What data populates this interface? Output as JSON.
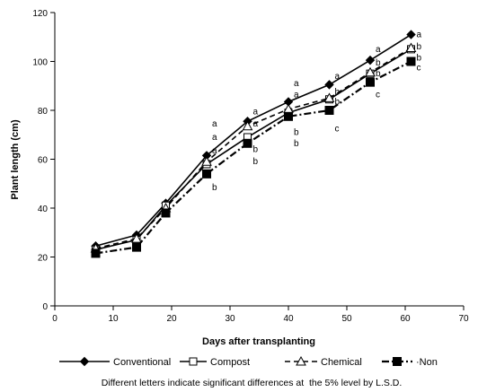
{
  "chart_data": {
    "type": "line",
    "title": "",
    "xlabel": "Days after transplanting",
    "ylabel": "Plant length (cm)",
    "xlim": [
      0,
      70
    ],
    "ylim": [
      0,
      120
    ],
    "xticks": [
      0,
      10,
      20,
      30,
      40,
      50,
      60,
      70
    ],
    "yticks": [
      0,
      20,
      40,
      60,
      80,
      100,
      120
    ],
    "grid": false,
    "legend_position": "bottom",
    "x": [
      7,
      14,
      19,
      26,
      33,
      40,
      47,
      54,
      61
    ],
    "series": [
      {
        "name": "Conventional",
        "marker": "filled-diamond",
        "line": "solid",
        "values": [
          24.5,
          29,
          42,
          61.5,
          75.5,
          83.5,
          90.5,
          100.5,
          111
        ]
      },
      {
        "name": "Compost",
        "marker": "open-square",
        "line": "solid",
        "values": [
          23,
          27,
          41,
          58,
          69,
          79,
          84.5,
          95,
          105
        ]
      },
      {
        "name": "Chemical",
        "marker": "open-triangle",
        "line": "dashed",
        "values": [
          23.5,
          27.5,
          40,
          59,
          73.5,
          80.5,
          85,
          95.5,
          105.5
        ]
      },
      {
        "name": "Non",
        "marker": "filled-square",
        "line": "dash-dot",
        "values": [
          21.5,
          24,
          38,
          54,
          66.5,
          77.5,
          80,
          91.5,
          100
        ]
      }
    ],
    "significance_letters": [
      {
        "x": 26,
        "y": 74.5,
        "text": "a"
      },
      {
        "x": 26,
        "y": 69,
        "text": "a"
      },
      {
        "x": 26,
        "y": 63.5,
        "text": "a"
      },
      {
        "x": 26,
        "y": 48.5,
        "text": "b"
      },
      {
        "x": 33,
        "y": 79.5,
        "text": "a"
      },
      {
        "x": 33,
        "y": 74.5,
        "text": "a"
      },
      {
        "x": 33,
        "y": 64,
        "text": "b"
      },
      {
        "x": 33,
        "y": 59,
        "text": "b"
      },
      {
        "x": 40,
        "y": 91,
        "text": "a"
      },
      {
        "x": 40,
        "y": 86.5,
        "text": "a"
      },
      {
        "x": 40,
        "y": 71,
        "text": "b"
      },
      {
        "x": 40,
        "y": 66.5,
        "text": "b"
      },
      {
        "x": 47,
        "y": 94,
        "text": "a"
      },
      {
        "x": 47,
        "y": 87.5,
        "text": "b"
      },
      {
        "x": 47,
        "y": 83.5,
        "text": "b"
      },
      {
        "x": 47,
        "y": 72.5,
        "text": "c"
      },
      {
        "x": 54,
        "y": 105,
        "text": "a"
      },
      {
        "x": 54,
        "y": 99.5,
        "text": "b"
      },
      {
        "x": 54,
        "y": 95,
        "text": "b"
      },
      {
        "x": 54,
        "y": 86.5,
        "text": "c"
      },
      {
        "x": 61,
        "y": 111,
        "text": "a"
      },
      {
        "x": 61,
        "y": 106,
        "text": "b"
      },
      {
        "x": 61,
        "y": 101.5,
        "text": "b"
      },
      {
        "x": 61,
        "y": 97.5,
        "text": "c"
      }
    ],
    "footnote": "Different letters indicate significant differences at  the 5% level by L.S.D."
  }
}
